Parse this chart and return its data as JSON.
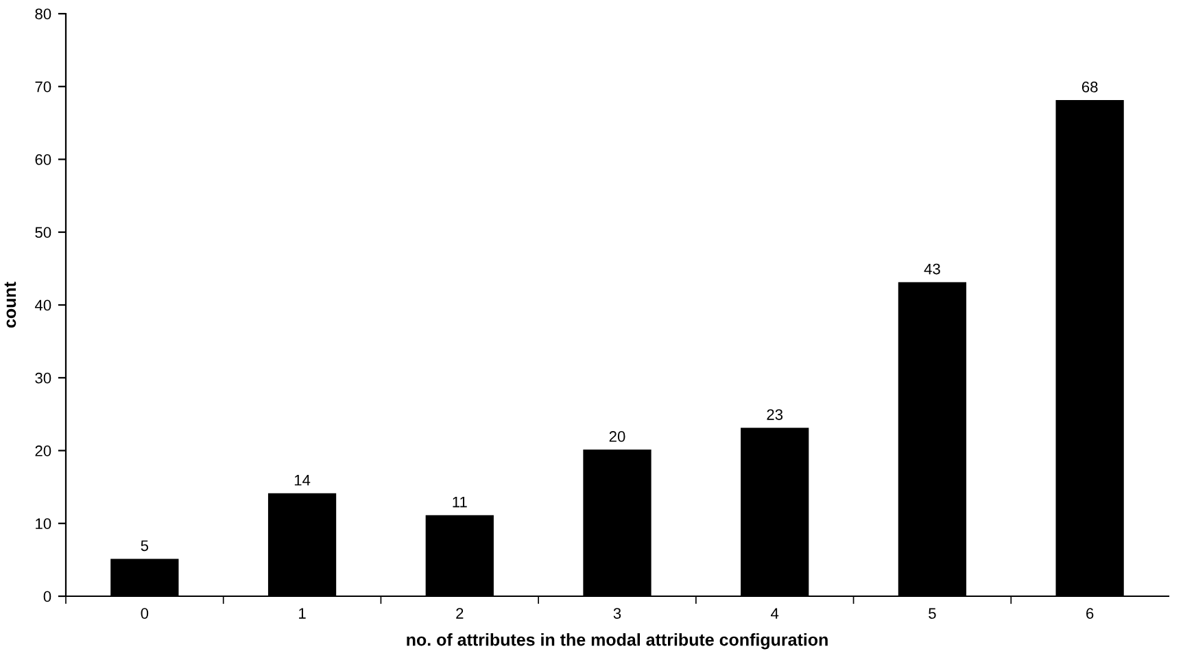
{
  "chart_data": {
    "type": "bar",
    "xlabel": "no. of attributes in the modal attribute configuration",
    "ylabel": "count",
    "categories": [
      "0",
      "1",
      "2",
      "3",
      "4",
      "5",
      "6"
    ],
    "values": [
      5,
      14,
      11,
      20,
      23,
      43,
      68
    ],
    "color": "#000000",
    "ylim": [
      0,
      80
    ],
    "yticks": [
      0,
      10,
      20,
      30,
      40,
      50,
      60,
      70,
      80
    ],
    "data_labels": true,
    "grid": false,
    "legend": false
  }
}
